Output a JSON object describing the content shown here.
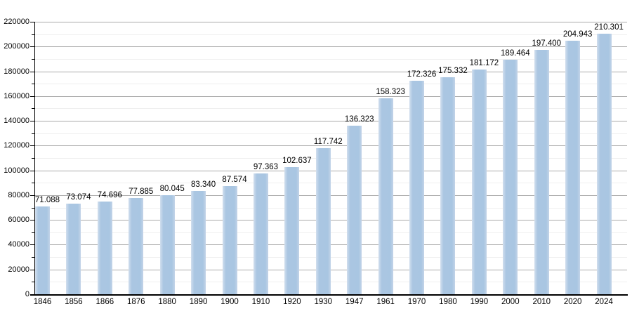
{
  "chart_data": {
    "type": "bar",
    "title": "",
    "xlabel": "",
    "ylabel": "",
    "categories": [
      "1846",
      "1856",
      "1866",
      "1876",
      "1880",
      "1890",
      "1900",
      "1910",
      "1920",
      "1930",
      "1947",
      "1961",
      "1970",
      "1980",
      "1990",
      "2000",
      "2010",
      "2020",
      "2024"
    ],
    "values": [
      71088,
      73074,
      74696,
      77885,
      80045,
      83340,
      87574,
      97363,
      102637,
      117742,
      136323,
      158323,
      172326,
      175332,
      181172,
      189464,
      197400,
      204943,
      210301
    ],
    "value_labels": [
      "71.088",
      "73.074",
      "74.696",
      "77.885",
      "80.045",
      "83.340",
      "87.574",
      "97.363",
      "102.637",
      "117.742",
      "136.323",
      "158.323",
      "172.326",
      "175.332",
      "181.172",
      "189.464",
      "197.400",
      "204.943",
      "210.301"
    ],
    "ylim": [
      0,
      220000
    ],
    "y_major_step": 20000,
    "y_minor_step": 10000,
    "y_tick_labels": [
      "0",
      "20000",
      "40000",
      "60000",
      "80000",
      "100000",
      "120000",
      "140000",
      "160000",
      "180000",
      "200000",
      "220000"
    ],
    "grid": "major-and-minor-horizontal",
    "legend": "none",
    "colors": {
      "bar_fill": "#aac6e2",
      "bar_edge_highlight": "#d2dfee",
      "gridline_major": "#aaaaaa",
      "gridline_minor": "#efefef",
      "axis": "#000000",
      "text": "#000000",
      "background": "#ffffff"
    }
  }
}
